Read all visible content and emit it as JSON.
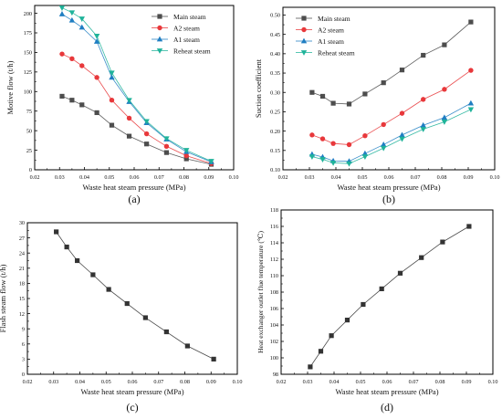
{
  "chart_data": [
    {
      "type": "line",
      "panel_label": "(a)",
      "xlabel": "Waste heat steam pressure (MPa)",
      "ylabel": "Motive flow (t/h)",
      "xlim": [
        0.02,
        0.1
      ],
      "ylim": [
        0,
        210
      ],
      "xticks": [
        "0.02",
        "0.03",
        "0.04",
        "0.05",
        "0.06",
        "0.07",
        "0.08",
        "0.09",
        "0.10"
      ],
      "yticks": [
        "0",
        "25",
        "50",
        "75",
        "100",
        "125",
        "150",
        "175",
        "200"
      ],
      "x": [
        0.031,
        0.035,
        0.039,
        0.045,
        0.051,
        0.058,
        0.065,
        0.073,
        0.081,
        0.091
      ],
      "legend_position": "top-right",
      "series": [
        {
          "name": "Main steam",
          "color": "#4d4d4d",
          "marker": "square",
          "values": [
            94,
            89,
            83,
            73,
            57,
            43,
            33,
            22,
            14,
            7
          ]
        },
        {
          "name": "A2 steam",
          "color": "#e8383b",
          "marker": "circle",
          "values": [
            148,
            142,
            133,
            118,
            89,
            66,
            46,
            30,
            18,
            8
          ]
        },
        {
          "name": "A1 steam",
          "color": "#1f7ec2",
          "marker": "triangle-up",
          "values": [
            199,
            191,
            182,
            164,
            118,
            87,
            60,
            39,
            23,
            10
          ]
        },
        {
          "name": "Reheat steam",
          "color": "#1fb39a",
          "marker": "triangle-down",
          "values": [
            207,
            201,
            193,
            171,
            124,
            89,
            62,
            40,
            25,
            11
          ]
        }
      ]
    },
    {
      "type": "line",
      "panel_label": "(b)",
      "xlabel": "Waste heat steam pressure (MPa)",
      "ylabel": "Suction coefficient",
      "xlim": [
        0.02,
        0.1
      ],
      "ylim": [
        0.1,
        0.52
      ],
      "xticks": [
        "0.02",
        "0.03",
        "0.04",
        "0.05",
        "0.06",
        "0.07",
        "0.08",
        "0.09",
        "0.10"
      ],
      "yticks": [
        "0.10",
        "0.15",
        "0.20",
        "0.25",
        "0.30",
        "0.35",
        "0.40",
        "0.45",
        "0.50"
      ],
      "x": [
        0.031,
        0.035,
        0.039,
        0.045,
        0.051,
        0.058,
        0.065,
        0.073,
        0.081,
        0.091
      ],
      "legend_position": "top-left",
      "series": [
        {
          "name": "Main steam",
          "color": "#4d4d4d",
          "marker": "square",
          "values": [
            0.3,
            0.29,
            0.272,
            0.27,
            0.296,
            0.325,
            0.358,
            0.396,
            0.423,
            0.482
          ]
        },
        {
          "name": "A2 steam",
          "color": "#e8383b",
          "marker": "circle",
          "values": [
            0.19,
            0.18,
            0.168,
            0.165,
            0.188,
            0.217,
            0.246,
            0.282,
            0.308,
            0.357
          ]
        },
        {
          "name": "A1 steam",
          "color": "#1f7ec2",
          "marker": "triangle-up",
          "values": [
            0.14,
            0.133,
            0.123,
            0.122,
            0.142,
            0.165,
            0.19,
            0.215,
            0.235,
            0.272
          ]
        },
        {
          "name": "Reheat steam",
          "color": "#1fb39a",
          "marker": "triangle-down",
          "values": [
            0.134,
            0.127,
            0.118,
            0.116,
            0.134,
            0.156,
            0.18,
            0.205,
            0.224,
            0.256
          ]
        }
      ]
    },
    {
      "type": "line",
      "panel_label": "(c)",
      "xlabel": "Waste heat steam pressure (MPa)",
      "ylabel": "Flash steam flow (t/h)",
      "xlim": [
        0.02,
        0.1
      ],
      "ylim": [
        0,
        30
      ],
      "xticks": [
        "0.02",
        "0.03",
        "0.04",
        "0.05",
        "0.06",
        "0.07",
        "0.08",
        "0.09",
        "0.10"
      ],
      "yticks": [
        "0",
        "3",
        "6",
        "9",
        "12",
        "15",
        "18",
        "21",
        "24",
        "27",
        "30"
      ],
      "x": [
        0.031,
        0.035,
        0.039,
        0.045,
        0.051,
        0.058,
        0.065,
        0.073,
        0.081,
        0.091
      ],
      "series": [
        {
          "color": "#333333",
          "marker": "square",
          "values": [
            28.2,
            25.2,
            22.5,
            19.7,
            16.8,
            14.0,
            11.2,
            8.4,
            5.6,
            3.0
          ]
        }
      ]
    },
    {
      "type": "line",
      "panel_label": "(d)",
      "xlabel": "Waste heat steam pressure (MPa)",
      "ylabel": "Heat exchanger outlet flue temperature (℃)",
      "xlim": [
        0.02,
        0.1
      ],
      "ylim": [
        98,
        118
      ],
      "xticks": [
        "0.02",
        "0.03",
        "0.04",
        "0.05",
        "0.06",
        "0.07",
        "0.08",
        "0.09",
        "0.10"
      ],
      "yticks": [
        "98",
        "100",
        "102",
        "104",
        "106",
        "108",
        "110",
        "112",
        "114",
        "116",
        "118"
      ],
      "x": [
        0.031,
        0.035,
        0.039,
        0.045,
        0.051,
        0.058,
        0.065,
        0.073,
        0.081,
        0.091
      ],
      "series": [
        {
          "color": "#333333",
          "marker": "square",
          "values": [
            98.9,
            100.8,
            102.7,
            104.6,
            106.5,
            108.4,
            110.3,
            112.2,
            114.1,
            116.0
          ]
        }
      ]
    }
  ]
}
